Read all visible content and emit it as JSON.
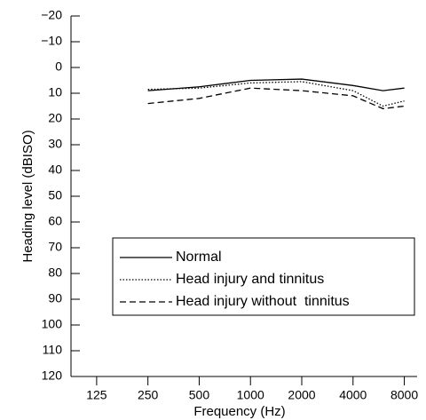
{
  "chart_data": {
    "type": "line",
    "ylabel": "Heading level (dBISO)",
    "xlabel": "Frequency (Hz)",
    "log_x": true,
    "y_inverted": true,
    "xlim": [
      88.39,
      9514
    ],
    "xticks": [
      125,
      250,
      500,
      1000,
      2000,
      4000,
      8000
    ],
    "ylim": [
      -20,
      120
    ],
    "yticks": [
      {
        "value": -20,
        "label": "−20"
      },
      {
        "value": -10,
        "label": "−10"
      },
      0,
      10,
      20,
      30,
      40,
      50,
      60,
      70,
      80,
      90,
      100,
      110,
      120
    ],
    "x": [
      250,
      500,
      1000,
      2000,
      4000,
      6000,
      8000
    ],
    "series": [
      {
        "name": "Normal",
        "color": "#000000",
        "style": "solid",
        "values": [
          9,
          7.5,
          5,
          4.5,
          7,
          9,
          8
        ]
      },
      {
        "name": "Head injury and tinnitus",
        "color": "#000000",
        "style": "dotted",
        "values": [
          8.5,
          8,
          6,
          5.5,
          9,
          15,
          13
        ]
      },
      {
        "name": "Head injury without  tinnitus",
        "color": "#000000",
        "style": "dashed",
        "values": [
          14,
          12,
          8,
          9,
          11,
          16,
          15
        ]
      }
    ]
  }
}
